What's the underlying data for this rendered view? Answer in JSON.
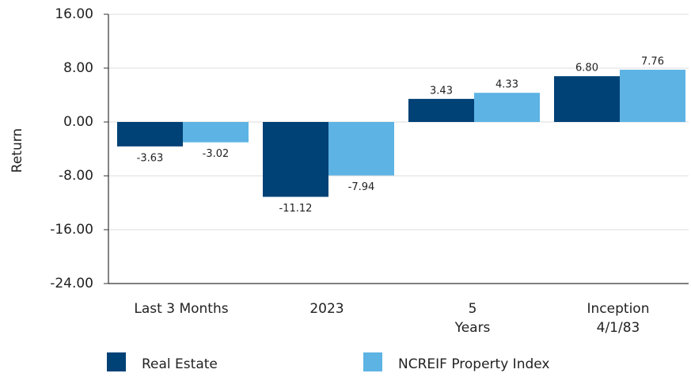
{
  "chart_data": {
    "type": "bar",
    "ylabel": "Return",
    "categories": [
      [
        "Last 3 Months"
      ],
      [
        "2023"
      ],
      [
        "5",
        "Years"
      ],
      [
        "Inception",
        "4/1/83"
      ]
    ],
    "series": [
      {
        "name": "Real Estate",
        "color": "#004176",
        "values": [
          -3.63,
          -11.12,
          3.43,
          6.8
        ],
        "value_labels": [
          "-3.63",
          "-11.12",
          "3.43",
          "6.80"
        ]
      },
      {
        "name": "NCREIF Property Index",
        "color": "#5db3e4",
        "values": [
          -3.02,
          -7.94,
          4.33,
          7.76
        ],
        "value_labels": [
          "-3.02",
          "-7.94",
          "4.33",
          "7.76"
        ]
      }
    ],
    "ylim": [
      -24,
      16
    ],
    "yticks": [
      {
        "value": 16,
        "label": "16.00"
      },
      {
        "value": 8,
        "label": "8.00"
      },
      {
        "value": 0,
        "label": "0.00"
      },
      {
        "value": -8,
        "label": "-8.00"
      },
      {
        "value": -16,
        "label": "-16.00"
      },
      {
        "value": -24,
        "label": "-24.00"
      }
    ],
    "grid": true,
    "legend": "bottom"
  }
}
